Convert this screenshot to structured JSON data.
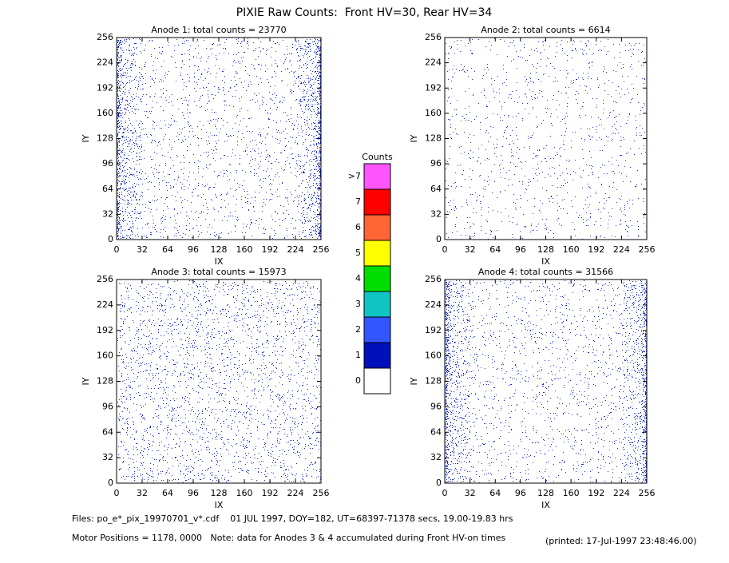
{
  "title": "PIXIE Raw Counts:  Front HV=30, Rear HV=34",
  "chart_data": [
    {
      "type": "heatmap",
      "title": "Anode 1: total counts = 23770",
      "xlabel": "IX",
      "ylabel": "IY",
      "xlim": [
        0,
        256
      ],
      "ylim": [
        0,
        256
      ],
      "xticks": [
        0,
        32,
        64,
        96,
        128,
        160,
        192,
        224,
        256
      ],
      "yticks": [
        0,
        32,
        64,
        96,
        128,
        160,
        192,
        224,
        256
      ]
    },
    {
      "type": "heatmap",
      "title": "Anode 2: total counts = 6614",
      "xlabel": "IX",
      "ylabel": "IY",
      "xlim": [
        0,
        256
      ],
      "ylim": [
        0,
        256
      ],
      "xticks": [
        0,
        32,
        64,
        96,
        128,
        160,
        192,
        224,
        256
      ],
      "yticks": [
        0,
        32,
        64,
        96,
        128,
        160,
        192,
        224,
        256
      ]
    },
    {
      "type": "heatmap",
      "title": "Anode 3: total counts = 15973",
      "xlabel": "IX",
      "ylabel": "IY",
      "xlim": [
        0,
        256
      ],
      "ylim": [
        0,
        256
      ],
      "xticks": [
        0,
        32,
        64,
        96,
        128,
        160,
        192,
        224,
        256
      ],
      "yticks": [
        0,
        32,
        64,
        96,
        128,
        160,
        192,
        224,
        256
      ]
    },
    {
      "type": "heatmap",
      "title": "Anode 4: total counts = 31566",
      "xlabel": "IX",
      "ylabel": "IY",
      "xlim": [
        0,
        256
      ],
      "ylim": [
        0,
        256
      ],
      "xticks": [
        0,
        32,
        64,
        96,
        128,
        160,
        192,
        224,
        256
      ],
      "yticks": [
        0,
        32,
        64,
        96,
        128,
        160,
        192,
        224,
        256
      ]
    }
  ],
  "colorbar": {
    "title": "Counts",
    "levels": [
      {
        "label": ">7",
        "color": "#ff55ff"
      },
      {
        "label": "7",
        "color": "#ff0000"
      },
      {
        "label": "6",
        "color": "#ff6633"
      },
      {
        "label": "5",
        "color": "#ffff00"
      },
      {
        "label": "4",
        "color": "#00dd00"
      },
      {
        "label": "3",
        "color": "#11c4c4"
      },
      {
        "label": "2",
        "color": "#3355ff"
      },
      {
        "label": "1",
        "color": "#0011bb"
      },
      {
        "label": "0",
        "color": "#ffffff"
      }
    ]
  },
  "footer": {
    "files": "Files: po_e*_pix_19970701_v*.cdf    01 JUL 1997, DOY=182, UT=68397-71378 secs, 19.00-19.83 hrs",
    "motor": "Motor Positions = 1178, 0000   Note: data for Anodes 3 & 4 accumulated during Front HV-on times",
    "printed": "(printed: 17-Jul-1997 23:48:46.00)"
  }
}
